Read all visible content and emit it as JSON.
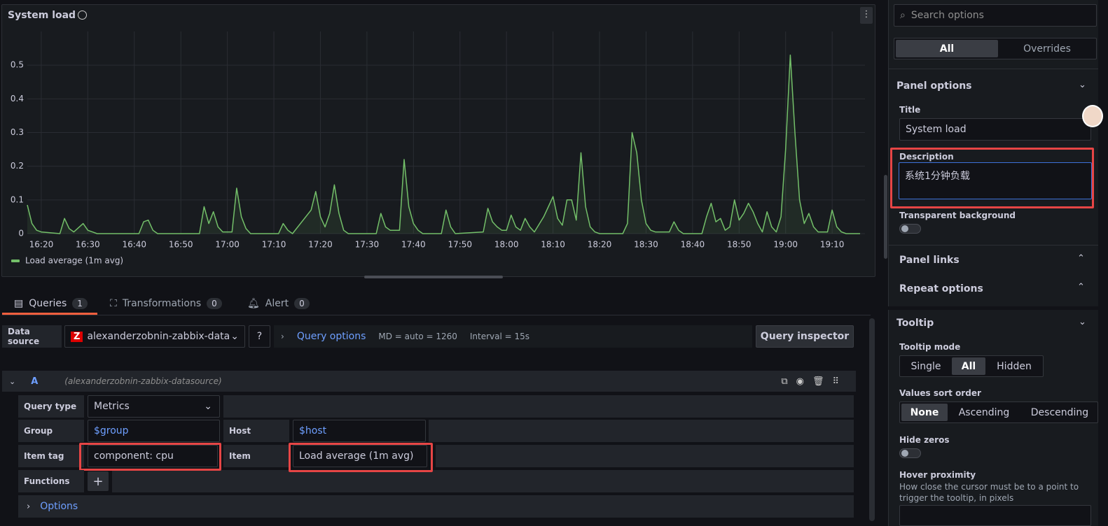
{
  "chart_data": {
    "type": "line",
    "title": "System load",
    "x": [
      "16:17",
      "16:18",
      "16:19",
      "16:20",
      "16:24",
      "16:25",
      "16:26",
      "16:27",
      "16:29",
      "16:30",
      "16:31",
      "16:32",
      "16:41",
      "16:42",
      "16:43",
      "16:44",
      "16:45",
      "16:54",
      "16:55",
      "16:56",
      "16:57",
      "16:58",
      "16:59",
      "17:01",
      "17:02",
      "17:03",
      "17:04",
      "17:05",
      "17:11",
      "17:12",
      "17:13",
      "17:14",
      "17:18",
      "17:19",
      "17:20",
      "17:21",
      "17:22",
      "17:23",
      "17:24",
      "17:25",
      "17:26",
      "17:32",
      "17:33",
      "17:34",
      "17:35",
      "17:37",
      "17:38",
      "17:39",
      "17:40",
      "17:41",
      "17:42",
      "17:46",
      "17:47",
      "17:48",
      "17:49",
      "17:55",
      "17:56",
      "17:57",
      "17:58",
      "17:59",
      "18:00",
      "18:01",
      "18:02",
      "18:03",
      "18:04",
      "18:05",
      "18:06",
      "18:08",
      "18:09",
      "18:10",
      "18:11",
      "18:12",
      "18:13",
      "18:14",
      "18:15",
      "18:16",
      "18:17",
      "18:18",
      "18:19",
      "18:20",
      "18:25",
      "18:26",
      "18:27",
      "18:28",
      "18:29",
      "18:30",
      "18:31",
      "18:32",
      "18:35",
      "18:36",
      "18:37",
      "18:38",
      "18:42",
      "18:43",
      "18:44",
      "18:45",
      "18:46",
      "18:47",
      "18:48",
      "18:49",
      "18:50",
      "18:51",
      "18:52",
      "18:53",
      "18:54",
      "18:55",
      "18:56",
      "18:57",
      "18:58",
      "18:59",
      "19:00",
      "19:01",
      "19:02",
      "19:03",
      "19:04",
      "19:05",
      "19:06",
      "19:07",
      "19:09",
      "19:10",
      "19:11",
      "19:12",
      "19:13",
      "19:16"
    ],
    "series": [
      {
        "name": "Load average (1m avg)",
        "color": "#73bf69",
        "values": [
          0.085,
          0.03,
          0.01,
          0.005,
          0,
          0.045,
          0.015,
          0.005,
          0.03,
          0.01,
          0.005,
          0,
          0,
          0.035,
          0.04,
          0.01,
          0,
          0,
          0.08,
          0.03,
          0.065,
          0.02,
          0.005,
          0.005,
          0.135,
          0.05,
          0.015,
          0,
          0,
          0.03,
          0.01,
          0,
          0.07,
          0.125,
          0.05,
          0.02,
          0.06,
          0.145,
          0.06,
          0.01,
          0,
          0,
          0.06,
          0.02,
          0.01,
          0.01,
          0.22,
          0.08,
          0.03,
          0.01,
          0,
          0,
          0.07,
          0.02,
          0,
          0.005,
          0.075,
          0.035,
          0.02,
          0.01,
          0.01,
          0.055,
          0.02,
          0.01,
          0.045,
          0.02,
          0.005,
          0.05,
          0.08,
          0.11,
          0.045,
          0.025,
          0.1,
          0.1,
          0.04,
          0.24,
          0.08,
          0.02,
          0.005,
          0,
          0,
          0.03,
          0.3,
          0.24,
          0.1,
          0.03,
          0.01,
          0.005,
          0.005,
          0.035,
          0.01,
          0,
          0,
          0.05,
          0.09,
          0.035,
          0.045,
          0.01,
          0.02,
          0.1,
          0.04,
          0.06,
          0.09,
          0.065,
          0.03,
          0.005,
          0.065,
          0.02,
          0.005,
          0.05,
          0.25,
          0.53,
          0.3,
          0.1,
          0.03,
          0.06,
          0.02,
          0.005,
          0.005,
          0.07,
          0.02,
          0.005,
          0,
          0
        ]
      }
    ],
    "xlim": [
      "16:17",
      "19:16"
    ],
    "xticks": [
      "16:20",
      "16:30",
      "16:40",
      "16:50",
      "17:00",
      "17:10",
      "17:20",
      "17:30",
      "17:40",
      "17:50",
      "18:00",
      "18:10",
      "18:20",
      "18:30",
      "18:40",
      "18:50",
      "19:00",
      "19:10"
    ],
    "ylim": [
      0,
      0.6
    ],
    "yticks": [
      0,
      0.1,
      0.2,
      0.3,
      0.4,
      0.5
    ],
    "grid": true,
    "legend": "bottom-left"
  },
  "tabs": [
    {
      "label": "Queries",
      "count": 1
    },
    {
      "label": "Transformations",
      "count": 0
    },
    {
      "label": "Alert",
      "count": 0
    }
  ],
  "datasource": {
    "label": "Data source",
    "name": "alexanderzobnin-zabbix-datas",
    "query_options": "Query options",
    "md": "MD = auto = 1260",
    "interval": "Interval = 15s",
    "inspector": "Query inspector"
  },
  "query": {
    "ref": "A",
    "source": "(alexanderzobnin-zabbix-datasource)",
    "fields": [
      {
        "label": "Query type",
        "value": "Metrics"
      },
      {
        "label": "Group",
        "value": "$group"
      },
      {
        "label": "Host",
        "value": "$host"
      },
      {
        "label": "Item tag",
        "value": "component: cpu"
      },
      {
        "label": "Item",
        "value": "Load average (1m avg)"
      }
    ],
    "functions": "Functions",
    "options": "Options"
  },
  "options_pane": {
    "search": "Search options",
    "modes": [
      "All",
      "Overrides"
    ],
    "panel_options": "Panel options",
    "title_label": "Title",
    "description_label": "Description",
    "description": "系统1分钟负载",
    "transparent": "Transparent background",
    "panel_links": "Panel links",
    "repeat_options": "Repeat options",
    "tooltip": "Tooltip",
    "tooltip_mode": "Tooltip mode",
    "tooltip_modes": [
      "Single",
      "All",
      "Hidden"
    ],
    "sort_order": "Values sort order",
    "sort_modes": [
      "None",
      "Ascending",
      "Descending"
    ],
    "hide_zeros": "Hide zeros",
    "hover_proximity": "Hover proximity",
    "hover_desc": "How close the cursor must be to a point to trigger the tooltip, in pixels"
  }
}
